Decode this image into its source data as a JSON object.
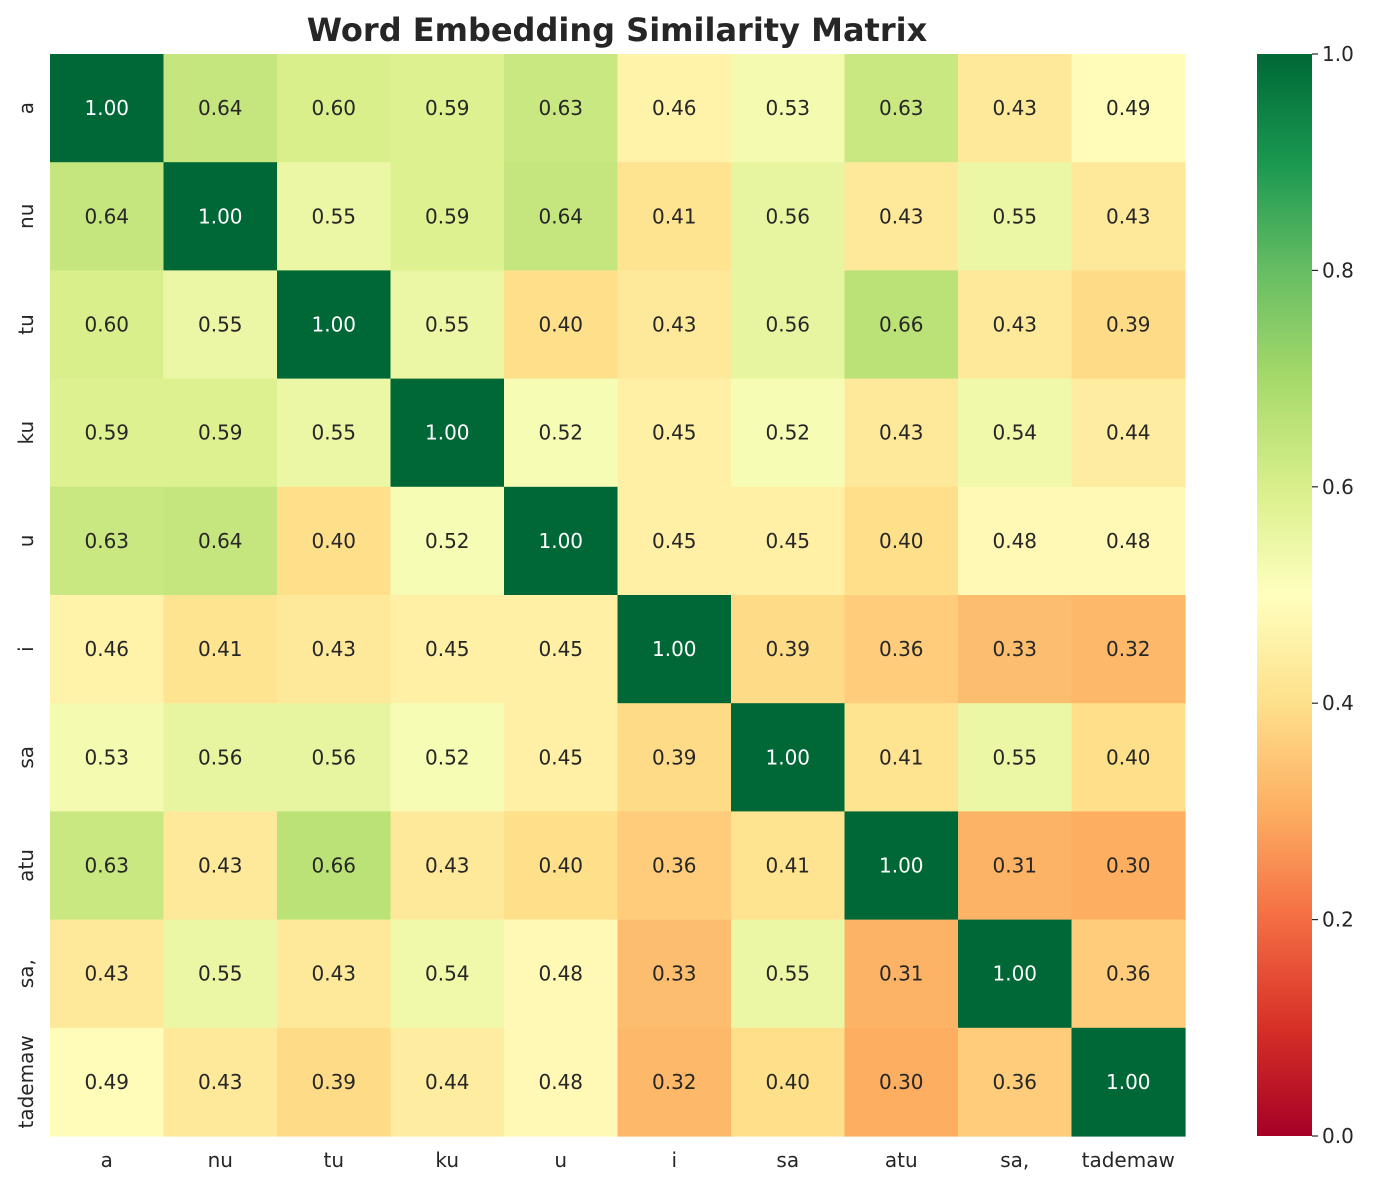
{
  "chart_data": {
    "type": "heatmap",
    "title": "Word Embedding Similarity Matrix",
    "xlabel": "",
    "ylabel": "",
    "x_labels": [
      "a",
      "nu",
      "tu",
      "ku",
      "u",
      "i",
      "sa",
      "atu",
      "sa,",
      "tademaw"
    ],
    "y_labels": [
      "a",
      "nu",
      "tu",
      "ku",
      "u",
      "i",
      "sa",
      "atu",
      "sa,",
      "tademaw"
    ],
    "values": [
      [
        1.0,
        0.64,
        0.6,
        0.59,
        0.63,
        0.46,
        0.53,
        0.63,
        0.43,
        0.49
      ],
      [
        0.64,
        1.0,
        0.55,
        0.59,
        0.64,
        0.41,
        0.56,
        0.43,
        0.55,
        0.43
      ],
      [
        0.6,
        0.55,
        1.0,
        0.55,
        0.4,
        0.43,
        0.56,
        0.66,
        0.43,
        0.39
      ],
      [
        0.59,
        0.59,
        0.55,
        1.0,
        0.52,
        0.45,
        0.52,
        0.43,
        0.54,
        0.44
      ],
      [
        0.63,
        0.64,
        0.4,
        0.52,
        1.0,
        0.45,
        0.45,
        0.4,
        0.48,
        0.48
      ],
      [
        0.46,
        0.41,
        0.43,
        0.45,
        0.45,
        1.0,
        0.39,
        0.36,
        0.33,
        0.32
      ],
      [
        0.53,
        0.56,
        0.56,
        0.52,
        0.45,
        0.39,
        1.0,
        0.41,
        0.55,
        0.4
      ],
      [
        0.63,
        0.43,
        0.66,
        0.43,
        0.4,
        0.36,
        0.41,
        1.0,
        0.31,
        0.3
      ],
      [
        0.43,
        0.55,
        0.43,
        0.54,
        0.48,
        0.33,
        0.55,
        0.31,
        1.0,
        0.36
      ],
      [
        0.49,
        0.43,
        0.39,
        0.44,
        0.48,
        0.32,
        0.4,
        0.3,
        0.36,
        1.0
      ]
    ],
    "value_format": "0.00",
    "colormap": "RdYlGn",
    "vmin": 0.0,
    "vmax": 1.0,
    "colorbar_ticks": [
      "0.0",
      "0.2",
      "0.4",
      "0.6",
      "0.8",
      "1.0"
    ],
    "grid": false,
    "colors": {
      "low": "#a50026",
      "mid": "#ffffbf",
      "high": "#006837",
      "text_dark": "#262626",
      "text_light": "#ffffff"
    }
  }
}
